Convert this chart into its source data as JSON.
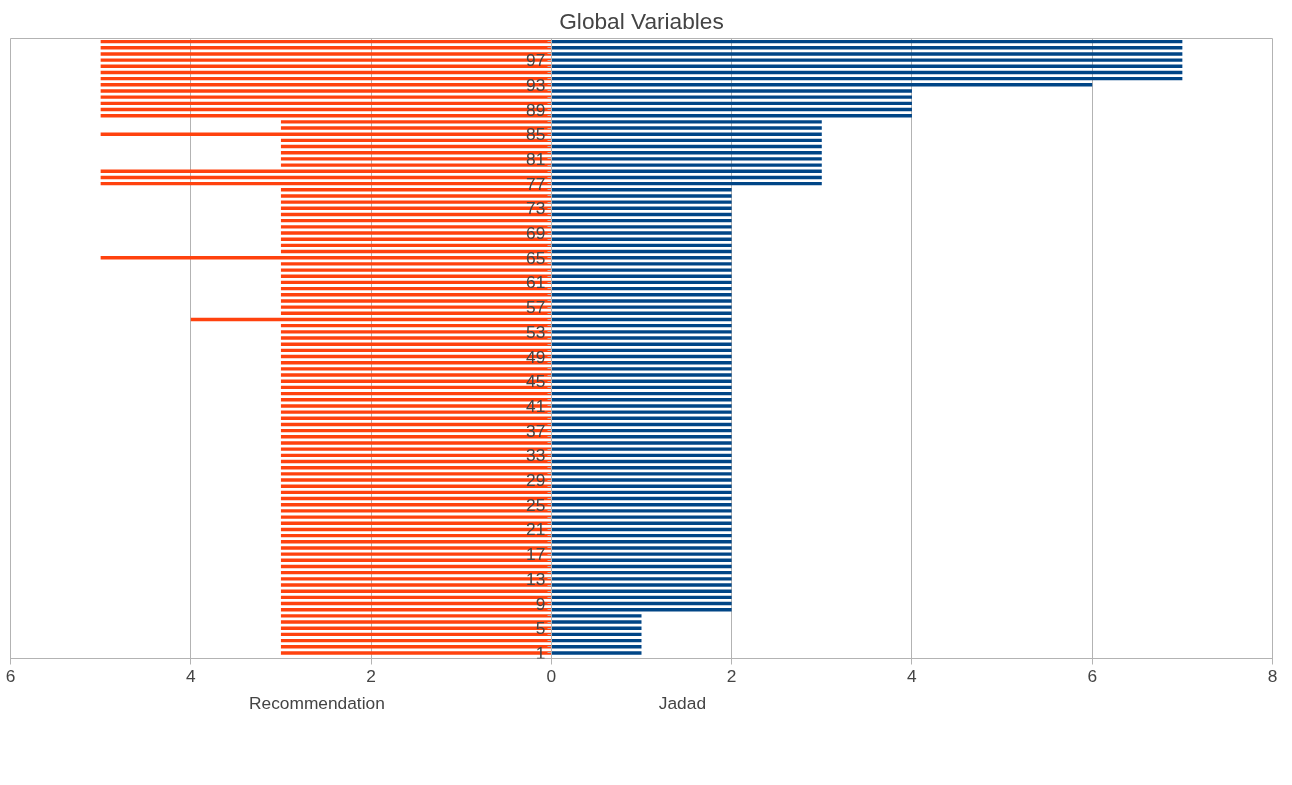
{
  "chart_data": {
    "type": "bar",
    "orientation": "horizontal",
    "title": "Global Variables",
    "categories": [
      null,
      null,
      null,
      "97",
      null,
      null,
      null,
      "93",
      null,
      null,
      null,
      "89",
      null,
      null,
      null,
      "85",
      null,
      null,
      null,
      "81",
      null,
      null,
      null,
      "77",
      null,
      null,
      null,
      "73",
      null,
      null,
      null,
      "69",
      null,
      null,
      null,
      "65",
      null,
      null,
      null,
      "61",
      null,
      null,
      null,
      "57",
      null,
      null,
      null,
      "53",
      null,
      null,
      null,
      "49",
      null,
      null,
      null,
      "45",
      null,
      null,
      null,
      "41",
      null,
      null,
      null,
      "37",
      null,
      null,
      null,
      "33",
      null,
      null,
      null,
      "29",
      null,
      null,
      null,
      "25",
      null,
      null,
      null,
      "21",
      null,
      null,
      null,
      "17",
      null,
      null,
      null,
      "13",
      null,
      null,
      null,
      "9",
      null,
      null,
      null,
      "5",
      null,
      null,
      null,
      "1"
    ],
    "series": [
      {
        "name": "Recommendation",
        "color": "#ff420e",
        "values": [
          -5,
          -5,
          -5,
          -5,
          -5,
          -5,
          -5,
          -5,
          -5,
          -5,
          -5,
          -5,
          -5,
          -3,
          -3,
          -5,
          -3,
          -3,
          -3,
          -3,
          -3,
          -5,
          -5,
          -5,
          -3,
          -3,
          -3,
          -3,
          -3,
          -3,
          -3,
          -3,
          -3,
          -3,
          -3,
          -5,
          -3,
          -3,
          -3,
          -3,
          -3,
          -3,
          -3,
          -3,
          -3,
          -4,
          -3,
          -3,
          -3,
          -3,
          -3,
          -3,
          -3,
          -3,
          -3,
          -3,
          -3,
          -3,
          -3,
          -3,
          -3,
          -3,
          -3,
          -3,
          -3,
          -3,
          -3,
          -3,
          -3,
          -3,
          -3,
          -3,
          -3,
          -3,
          -3,
          -3,
          -3,
          -3,
          -3,
          -3,
          -3,
          -3,
          -3,
          -3,
          -3,
          -3,
          -3,
          -3,
          -3,
          -3,
          -3,
          -3,
          -3,
          -3,
          -3,
          -3,
          -3,
          -3,
          -3,
          -3
        ]
      },
      {
        "name": "Jadad",
        "color": "#004586",
        "values": [
          7,
          7,
          7,
          7,
          7,
          7,
          7,
          6,
          4,
          4,
          4,
          4,
          4,
          3,
          3,
          3,
          3,
          3,
          3,
          3,
          3,
          3,
          3,
          3,
          2,
          2,
          2,
          2,
          2,
          2,
          2,
          2,
          2,
          2,
          2,
          2,
          2,
          2,
          2,
          2,
          2,
          2,
          2,
          2,
          2,
          2,
          2,
          2,
          2,
          2,
          2,
          2,
          2,
          2,
          2,
          2,
          2,
          2,
          2,
          2,
          2,
          2,
          2,
          2,
          2,
          2,
          2,
          2,
          2,
          2,
          2,
          2,
          2,
          2,
          2,
          2,
          2,
          2,
          2,
          2,
          2,
          2,
          2,
          2,
          2,
          2,
          2,
          2,
          2,
          2,
          2,
          2,
          2,
          1,
          1,
          1,
          1,
          1,
          1,
          1
        ]
      }
    ],
    "stacked": true,
    "xlim": [
      -6,
      8
    ],
    "xticks": [
      {
        "value": -6,
        "label": "6"
      },
      {
        "value": -4,
        "label": "4"
      },
      {
        "value": -2,
        "label": "2"
      },
      0,
      2,
      4,
      6,
      8
    ],
    "grid": "x",
    "legend": "bottom"
  }
}
